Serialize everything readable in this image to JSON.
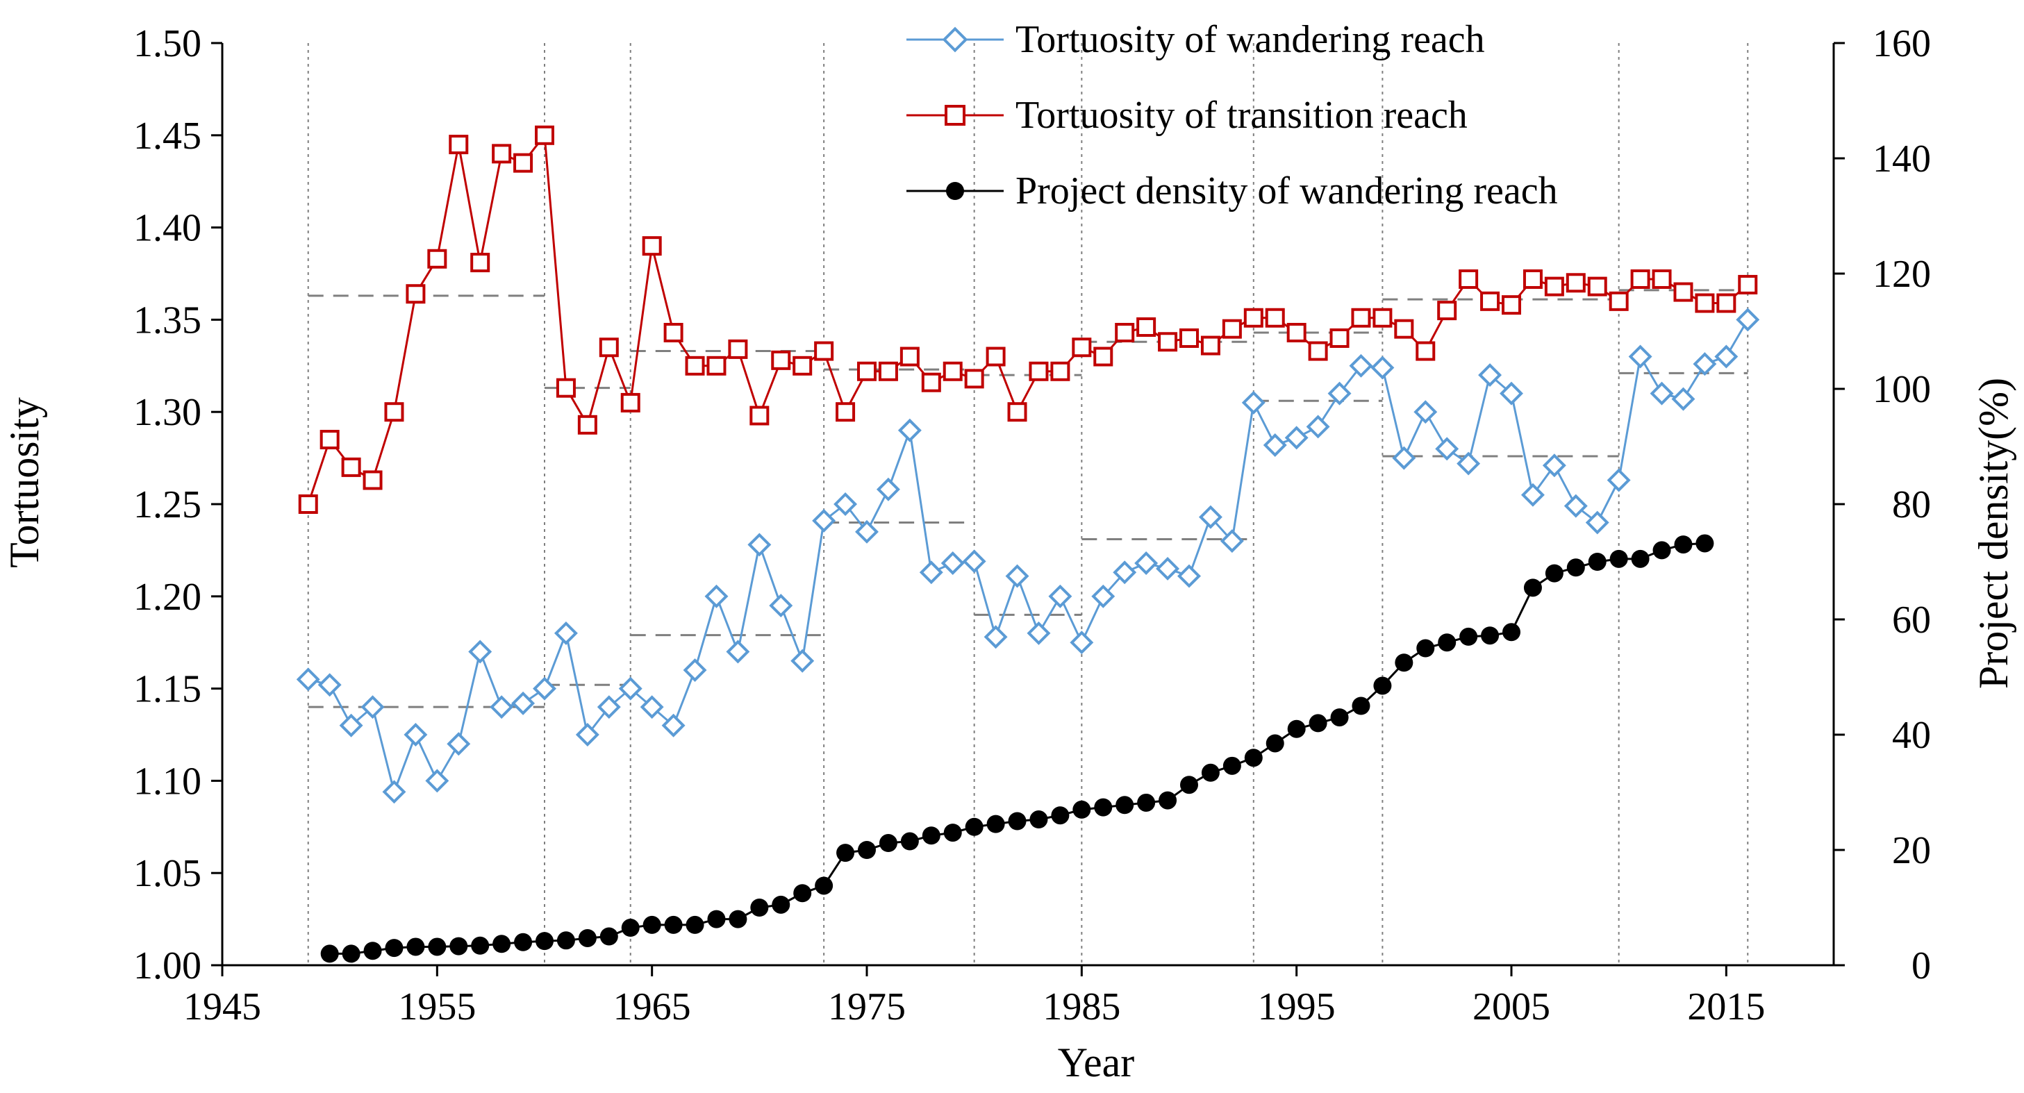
{
  "chart_data": {
    "type": "line",
    "title": "",
    "xlabel": "Year",
    "ylabel_left": "Tortuosity",
    "ylabel_right": "Project density(%)",
    "xlim": [
      1945,
      2020
    ],
    "ylim_left": [
      1.0,
      1.5
    ],
    "ylim_right": [
      0,
      160
    ],
    "x_ticks": [
      "1945",
      "1955",
      "1965",
      "1975",
      "1985",
      "1995",
      "2005",
      "2015"
    ],
    "y_ticks_left": [
      "1.00",
      "1.05",
      "1.10",
      "1.15",
      "1.20",
      "1.25",
      "1.30",
      "1.35",
      "1.40",
      "1.45",
      "1.50"
    ],
    "y_ticks_right": [
      "0",
      "20",
      "40",
      "60",
      "80",
      "100",
      "120",
      "140",
      "160"
    ],
    "period_boundaries": [
      1949,
      1960,
      1964,
      1973,
      1980,
      1985,
      1993,
      1999,
      2010,
      2016
    ],
    "legend_position": "top-center",
    "colors": {
      "wandering": "#5b9bd5",
      "transition": "#c00000",
      "density": "#000000",
      "period": "#7f7f7f"
    },
    "series": [
      {
        "name": "Tortuosity of wandering reach",
        "axis": "left",
        "marker": "diamond",
        "x": [
          1949,
          1950,
          1951,
          1952,
          1953,
          1954,
          1955,
          1956,
          1957,
          1958,
          1959,
          1960,
          1961,
          1962,
          1963,
          1964,
          1965,
          1966,
          1967,
          1968,
          1969,
          1970,
          1971,
          1972,
          1973,
          1974,
          1975,
          1976,
          1977,
          1978,
          1979,
          1980,
          1981,
          1982,
          1983,
          1984,
          1985,
          1986,
          1987,
          1988,
          1989,
          1990,
          1991,
          1992,
          1993,
          1994,
          1995,
          1996,
          1997,
          1998,
          1999,
          2000,
          2001,
          2002,
          2003,
          2004,
          2005,
          2006,
          2007,
          2008,
          2009,
          2010,
          2011,
          2012,
          2013,
          2014,
          2015,
          2016
        ],
        "values": [
          1.155,
          1.152,
          1.13,
          1.14,
          1.094,
          1.125,
          1.1,
          1.12,
          1.17,
          1.14,
          1.142,
          1.15,
          1.18,
          1.125,
          1.14,
          1.15,
          1.14,
          1.13,
          1.16,
          1.2,
          1.17,
          1.228,
          1.195,
          1.165,
          1.241,
          1.25,
          1.235,
          1.258,
          1.29,
          1.213,
          1.218,
          1.219,
          1.178,
          1.211,
          1.18,
          1.2,
          1.175,
          1.2,
          1.213,
          1.218,
          1.215,
          1.211,
          1.243,
          1.23,
          1.305,
          1.282,
          1.286,
          1.292,
          1.31,
          1.325,
          1.324,
          1.275,
          1.3,
          1.28,
          1.272,
          1.32,
          1.31,
          1.255,
          1.271,
          1.249,
          1.24,
          1.263,
          1.33,
          1.31,
          1.307,
          1.326,
          1.33,
          1.35
        ]
      },
      {
        "name": "Tortuosity of transition reach",
        "axis": "left",
        "marker": "square",
        "x": [
          1949,
          1950,
          1951,
          1952,
          1953,
          1954,
          1955,
          1956,
          1957,
          1958,
          1959,
          1960,
          1961,
          1962,
          1963,
          1964,
          1965,
          1966,
          1967,
          1968,
          1969,
          1970,
          1971,
          1972,
          1973,
          1974,
          1975,
          1976,
          1977,
          1978,
          1979,
          1980,
          1981,
          1982,
          1983,
          1984,
          1985,
          1986,
          1987,
          1988,
          1989,
          1990,
          1991,
          1992,
          1993,
          1994,
          1995,
          1996,
          1997,
          1998,
          1999,
          2000,
          2001,
          2002,
          2003,
          2004,
          2005,
          2006,
          2007,
          2008,
          2009,
          2010,
          2011,
          2012,
          2013,
          2014,
          2015,
          2016
        ],
        "values": [
          1.25,
          1.285,
          1.27,
          1.263,
          1.3,
          1.364,
          1.383,
          1.445,
          1.381,
          1.44,
          1.435,
          1.45,
          1.313,
          1.293,
          1.335,
          1.305,
          1.39,
          1.343,
          1.325,
          1.325,
          1.334,
          1.298,
          1.328,
          1.325,
          1.333,
          1.3,
          1.322,
          1.322,
          1.33,
          1.316,
          1.322,
          1.318,
          1.33,
          1.3,
          1.322,
          1.322,
          1.335,
          1.33,
          1.343,
          1.346,
          1.338,
          1.34,
          1.336,
          1.345,
          1.351,
          1.351,
          1.343,
          1.333,
          1.34,
          1.351,
          1.351,
          1.345,
          1.333,
          1.355,
          1.372,
          1.36,
          1.358,
          1.372,
          1.368,
          1.37,
          1.368,
          1.36,
          1.372,
          1.372,
          1.365,
          1.359,
          1.359,
          1.369
        ]
      },
      {
        "name": "Project density of wandering reach",
        "axis": "right",
        "marker": "circle",
        "x": [
          1950,
          1951,
          1952,
          1953,
          1954,
          1955,
          1956,
          1957,
          1958,
          1959,
          1960,
          1961,
          1962,
          1963,
          1964,
          1965,
          1966,
          1967,
          1968,
          1969,
          1970,
          1971,
          1972,
          1973,
          1974,
          1975,
          1976,
          1977,
          1978,
          1979,
          1980,
          1981,
          1982,
          1983,
          1984,
          1985,
          1986,
          1987,
          1988,
          1989,
          1990,
          1991,
          1992,
          1993,
          1994,
          1995,
          1996,
          1997,
          1998,
          1999,
          2000,
          2001,
          2002,
          2003,
          2004,
          2005,
          2006,
          2007,
          2008,
          2009,
          2010,
          2011,
          2012,
          2013,
          2014
        ],
        "values": [
          2,
          2,
          2.5,
          3,
          3.2,
          3.2,
          3.3,
          3.4,
          3.7,
          4,
          4.2,
          4.3,
          4.7,
          5,
          6.5,
          7,
          7,
          7,
          8,
          8,
          10,
          10.5,
          12.5,
          13.8,
          19.5,
          20,
          21.2,
          21.5,
          22.5,
          23,
          24,
          24.5,
          25,
          25.3,
          26,
          27,
          27.4,
          27.8,
          28.2,
          28.6,
          31.3,
          33.4,
          34.6,
          36,
          38.5,
          41,
          42,
          43,
          45,
          48.5,
          52.5,
          55,
          56,
          57,
          57.2,
          57.8,
          65.5,
          68,
          69,
          70,
          70.5,
          70.5,
          72,
          73,
          73.2
        ]
      }
    ],
    "period_means": {
      "wandering": [
        {
          "from": 1949,
          "to": 1960,
          "value": 1.14
        },
        {
          "from": 1960,
          "to": 1964,
          "value": 1.152
        },
        {
          "from": 1964,
          "to": 1973,
          "value": 1.179
        },
        {
          "from": 1973,
          "to": 1980,
          "value": 1.24
        },
        {
          "from": 1980,
          "to": 1985,
          "value": 1.19
        },
        {
          "from": 1985,
          "to": 1993,
          "value": 1.231
        },
        {
          "from": 1993,
          "to": 1999,
          "value": 1.306
        },
        {
          "from": 1999,
          "to": 2010,
          "value": 1.276
        },
        {
          "from": 2010,
          "to": 2016,
          "value": 1.321
        }
      ],
      "transition": [
        {
          "from": 1949,
          "to": 1960,
          "value": 1.363
        },
        {
          "from": 1960,
          "to": 1964,
          "value": 1.313
        },
        {
          "from": 1964,
          "to": 1973,
          "value": 1.333
        },
        {
          "from": 1973,
          "to": 1980,
          "value": 1.323
        },
        {
          "from": 1980,
          "to": 1985,
          "value": 1.32
        },
        {
          "from": 1985,
          "to": 1993,
          "value": 1.338
        },
        {
          "from": 1993,
          "to": 1999,
          "value": 1.343
        },
        {
          "from": 1999,
          "to": 2010,
          "value": 1.361
        },
        {
          "from": 2010,
          "to": 2016,
          "value": 1.366
        }
      ]
    }
  }
}
